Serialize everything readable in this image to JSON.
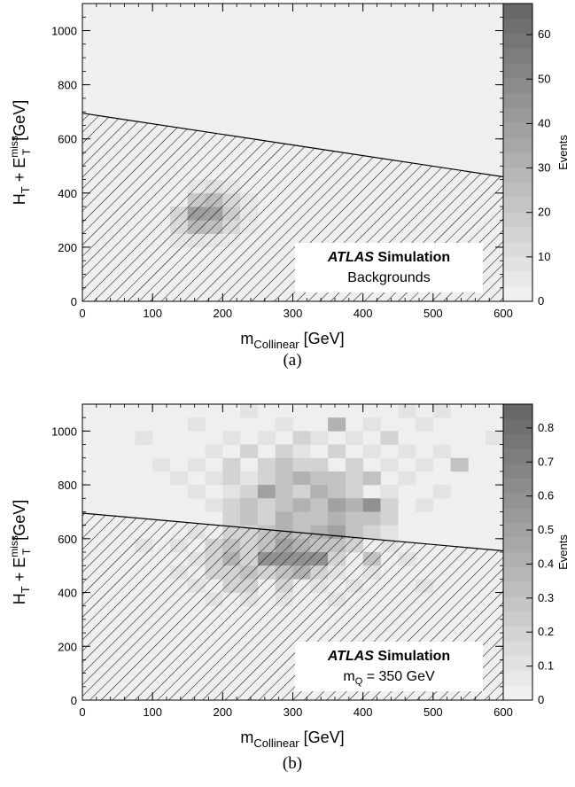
{
  "chart_data": [
    {
      "type": "heatmap",
      "caption": "(a)",
      "xlabel": {
        "main": "m",
        "sub": "Collinear",
        "unit": " [GeV]"
      },
      "ylabel": {
        "main": "H",
        "sub1": "T",
        "mid": " + E",
        "sup": "miss",
        "sub2": "T",
        "unit": " [GeV]"
      },
      "zlabel": "Events",
      "xlim": [
        0,
        600
      ],
      "ylim": [
        0,
        1100
      ],
      "xticks": [
        0,
        100,
        200,
        300,
        400,
        500,
        600
      ],
      "yticks": [
        0,
        200,
        400,
        600,
        800,
        1000
      ],
      "zlim": [
        0,
        67
      ],
      "zticks": [
        0,
        10,
        20,
        30,
        40,
        50,
        60
      ],
      "legend": {
        "experiment": "ATLAS",
        "word": "Simulation",
        "line2": "Backgrounds",
        "position": "bottom-right"
      },
      "cut_line": {
        "x": [
          0,
          600
        ],
        "y": [
          695,
          460
        ]
      },
      "bin_size": [
        25,
        50
      ],
      "cells": [
        [
          125,
          200,
          6
        ],
        [
          150,
          200,
          8
        ],
        [
          175,
          200,
          6
        ],
        [
          200,
          200,
          4
        ],
        [
          125,
          250,
          12
        ],
        [
          150,
          250,
          28
        ],
        [
          175,
          250,
          24
        ],
        [
          200,
          250,
          12
        ],
        [
          225,
          250,
          4
        ],
        [
          125,
          300,
          14
        ],
        [
          150,
          300,
          40
        ],
        [
          175,
          300,
          38
        ],
        [
          200,
          300,
          18
        ],
        [
          225,
          300,
          6
        ],
        [
          250,
          300,
          2
        ],
        [
          150,
          350,
          20
        ],
        [
          175,
          350,
          26
        ],
        [
          200,
          350,
          14
        ],
        [
          225,
          350,
          6
        ],
        [
          250,
          350,
          2
        ],
        [
          150,
          400,
          6
        ],
        [
          175,
          400,
          10
        ],
        [
          200,
          400,
          6
        ],
        [
          225,
          400,
          2
        ],
        [
          175,
          450,
          2
        ]
      ]
    },
    {
      "type": "heatmap",
      "caption": "(b)",
      "xlabel": {
        "main": "m",
        "sub": "Collinear",
        "unit": " [GeV]"
      },
      "ylabel": {
        "main": "H",
        "sub1": "T",
        "mid": " + E",
        "sup": "miss",
        "sub2": "T",
        "unit": " [GeV]"
      },
      "zlabel": "Events",
      "xlim": [
        0,
        600
      ],
      "ylim": [
        0,
        1100
      ],
      "xticks": [
        0,
        100,
        200,
        300,
        400,
        500,
        600
      ],
      "yticks": [
        0,
        200,
        400,
        600,
        800,
        1000
      ],
      "zlim": [
        0,
        0.87
      ],
      "zticks": [
        0,
        0.1,
        0.2,
        0.3,
        0.4,
        0.5,
        0.6,
        0.7,
        0.8
      ],
      "legend": {
        "experiment": "ATLAS",
        "word": "Simulation",
        "line2": {
          "main": "m",
          "sub": "Q",
          "rest": " = 350 GeV"
        },
        "position": "bottom-right"
      },
      "cut_line": {
        "x": [
          0,
          600
        ],
        "y": [
          695,
          555
        ]
      },
      "bin_size": [
        25,
        50
      ],
      "cells": [
        [
          225,
          1050,
          0.1
        ],
        [
          450,
          1050,
          0.1
        ],
        [
          500,
          1050,
          0.1
        ],
        [
          150,
          1000,
          0.1
        ],
        [
          275,
          1000,
          0.1
        ],
        [
          350,
          1000,
          0.4
        ],
        [
          400,
          1000,
          0.1
        ],
        [
          475,
          1000,
          0.1
        ],
        [
          75,
          950,
          0.1
        ],
        [
          200,
          950,
          0.1
        ],
        [
          250,
          950,
          0.1
        ],
        [
          300,
          950,
          0.2
        ],
        [
          325,
          950,
          0.1
        ],
        [
          375,
          950,
          0.1
        ],
        [
          425,
          950,
          0.2
        ],
        [
          575,
          950,
          0.1
        ],
        [
          175,
          900,
          0.1
        ],
        [
          225,
          900,
          0.2
        ],
        [
          275,
          900,
          0.2
        ],
        [
          300,
          900,
          0.1
        ],
        [
          350,
          900,
          0.2
        ],
        [
          400,
          900,
          0.1
        ],
        [
          450,
          900,
          0.1
        ],
        [
          500,
          900,
          0.1
        ],
        [
          100,
          850,
          0.1
        ],
        [
          150,
          850,
          0.1
        ],
        [
          200,
          850,
          0.2
        ],
        [
          250,
          850,
          0.2
        ],
        [
          275,
          850,
          0.3
        ],
        [
          300,
          850,
          0.2
        ],
        [
          325,
          850,
          0.2
        ],
        [
          375,
          850,
          0.2
        ],
        [
          425,
          850,
          0.1
        ],
        [
          475,
          850,
          0.1
        ],
        [
          525,
          850,
          0.3
        ],
        [
          125,
          800,
          0.1
        ],
        [
          175,
          800,
          0.1
        ],
        [
          200,
          800,
          0.2
        ],
        [
          225,
          800,
          0.1
        ],
        [
          250,
          800,
          0.2
        ],
        [
          275,
          800,
          0.3
        ],
        [
          300,
          800,
          0.4
        ],
        [
          325,
          800,
          0.3
        ],
        [
          350,
          800,
          0.3
        ],
        [
          375,
          800,
          0.2
        ],
        [
          400,
          800,
          0.3
        ],
        [
          450,
          800,
          0.1
        ],
        [
          150,
          750,
          0.1
        ],
        [
          200,
          750,
          0.1
        ],
        [
          225,
          750,
          0.2
        ],
        [
          250,
          750,
          0.5
        ],
        [
          275,
          750,
          0.3
        ],
        [
          300,
          750,
          0.2
        ],
        [
          325,
          750,
          0.4
        ],
        [
          350,
          750,
          0.3
        ],
        [
          375,
          750,
          0.2
        ],
        [
          425,
          750,
          0.1
        ],
        [
          500,
          750,
          0.1
        ],
        [
          175,
          700,
          0.1
        ],
        [
          200,
          700,
          0.2
        ],
        [
          225,
          700,
          0.3
        ],
        [
          250,
          700,
          0.2
        ],
        [
          275,
          700,
          0.3
        ],
        [
          300,
          700,
          0.4
        ],
        [
          325,
          700,
          0.3
        ],
        [
          350,
          700,
          0.5
        ],
        [
          375,
          700,
          0.4
        ],
        [
          400,
          700,
          0.6
        ],
        [
          425,
          700,
          0.2
        ],
        [
          475,
          700,
          0.1
        ],
        [
          200,
          650,
          0.2
        ],
        [
          225,
          650,
          0.3
        ],
        [
          250,
          650,
          0.2
        ],
        [
          275,
          650,
          0.4
        ],
        [
          300,
          650,
          0.3
        ],
        [
          325,
          650,
          0.3
        ],
        [
          350,
          650,
          0.4
        ],
        [
          375,
          650,
          0.3
        ],
        [
          400,
          650,
          0.3
        ],
        [
          425,
          650,
          0.2
        ],
        [
          150,
          600,
          0.1
        ],
        [
          200,
          600,
          0.2
        ],
        [
          225,
          600,
          0.2
        ],
        [
          250,
          600,
          0.3
        ],
        [
          275,
          600,
          0.4
        ],
        [
          300,
          600,
          0.3
        ],
        [
          325,
          600,
          0.4
        ],
        [
          350,
          600,
          0.5
        ],
        [
          375,
          600,
          0.3
        ],
        [
          400,
          600,
          0.2
        ],
        [
          425,
          600,
          0.1
        ],
        [
          75,
          550,
          0.1
        ],
        [
          125,
          550,
          0.1
        ],
        [
          175,
          550,
          0.2
        ],
        [
          200,
          550,
          0.3
        ],
        [
          225,
          550,
          0.2
        ],
        [
          250,
          550,
          0.3
        ],
        [
          275,
          550,
          0.5
        ],
        [
          300,
          550,
          0.4
        ],
        [
          325,
          550,
          0.3
        ],
        [
          350,
          550,
          0.3
        ],
        [
          375,
          550,
          0.2
        ],
        [
          425,
          550,
          0.1
        ],
        [
          150,
          500,
          0.1
        ],
        [
          175,
          500,
          0.2
        ],
        [
          200,
          500,
          0.4
        ],
        [
          225,
          500,
          0.2
        ],
        [
          250,
          500,
          0.6
        ],
        [
          275,
          500,
          0.6
        ],
        [
          300,
          500,
          0.6
        ],
        [
          325,
          500,
          0.6
        ],
        [
          350,
          500,
          0.2
        ],
        [
          400,
          500,
          0.3
        ],
        [
          450,
          500,
          0.1
        ],
        [
          125,
          450,
          0.1
        ],
        [
          175,
          450,
          0.2
        ],
        [
          200,
          450,
          0.2
        ],
        [
          225,
          450,
          0.3
        ],
        [
          250,
          450,
          0.2
        ],
        [
          275,
          450,
          0.3
        ],
        [
          300,
          450,
          0.4
        ],
        [
          325,
          450,
          0.2
        ],
        [
          350,
          450,
          0.1
        ],
        [
          400,
          450,
          0.1
        ],
        [
          150,
          400,
          0.1
        ],
        [
          200,
          400,
          0.2
        ],
        [
          225,
          400,
          0.2
        ],
        [
          275,
          400,
          0.2
        ],
        [
          325,
          400,
          0.1
        ],
        [
          375,
          400,
          0.1
        ],
        [
          475,
          400,
          0.1
        ],
        [
          175,
          350,
          0.1
        ],
        [
          225,
          350,
          0.1
        ],
        [
          275,
          350,
          0.1
        ],
        [
          350,
          350,
          0.1
        ]
      ]
    }
  ]
}
